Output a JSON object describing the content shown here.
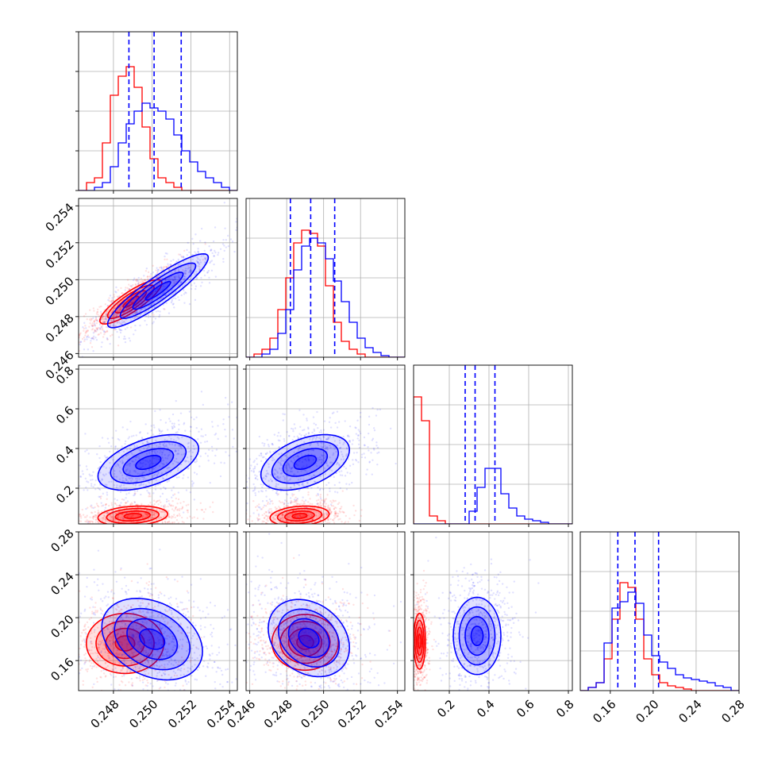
{
  "figure": {
    "type": "corner_plot"
  },
  "colors": {
    "series_a": "#ff0000",
    "series_b": "#0000ff",
    "grid": "#b0b0b0",
    "frame": "#000000"
  },
  "chart_data": {
    "type": "corner",
    "dimensions": 4,
    "series": [
      {
        "color": "#ff0000"
      },
      {
        "color": "#0000ff"
      }
    ],
    "axes": [
      {
        "range": [
          0.2462,
          0.2544
        ],
        "ticks": [
          "0.248",
          "0.250",
          "0.252",
          "0.254"
        ],
        "tick_values": [
          0.248,
          0.25,
          0.252,
          0.254
        ]
      },
      {
        "range": [
          0.2458,
          0.2544
        ],
        "ticks": [
          "0.246",
          "0.248",
          "0.250",
          "0.252",
          "0.254"
        ],
        "tick_values": [
          0.246,
          0.248,
          0.25,
          0.252,
          0.254
        ]
      },
      {
        "range": [
          0.02,
          0.82
        ],
        "ticks": [
          "0.2",
          "0.4",
          "0.6",
          "0.8"
        ],
        "tick_values": [
          0.2,
          0.4,
          0.6,
          0.8
        ]
      },
      {
        "range": [
          0.132,
          0.28
        ],
        "ticks": [
          "0.16",
          "0.20",
          "0.24",
          "0.28"
        ],
        "tick_values": [
          0.16,
          0.2,
          0.24,
          0.28
        ]
      }
    ],
    "quantiles_blue": [
      [
        0.2488,
        0.2501,
        0.2515
      ],
      [
        0.2482,
        0.2493,
        0.2506
      ],
      [
        0.28,
        0.33,
        0.43
      ],
      [
        0.167,
        0.183,
        0.205
      ]
    ],
    "histograms": {
      "0": {
        "red": [
          0.0,
          0.05,
          0.08,
          0.3,
          0.6,
          0.72,
          0.78,
          0.65,
          0.4,
          0.2,
          0.08,
          0.05,
          0.02,
          0.0,
          0.0,
          0.0,
          0.0,
          0.0,
          0.0,
          0.0
        ],
        "blue": [
          0.0,
          0.0,
          0.02,
          0.05,
          0.15,
          0.3,
          0.42,
          0.5,
          0.55,
          0.52,
          0.5,
          0.45,
          0.35,
          0.25,
          0.18,
          0.12,
          0.08,
          0.05,
          0.02,
          0.0
        ]
      },
      "1": {
        "red": [
          0.0,
          0.02,
          0.05,
          0.12,
          0.3,
          0.5,
          0.72,
          0.8,
          0.78,
          0.7,
          0.45,
          0.22,
          0.1,
          0.05,
          0.02,
          0.0,
          0.0,
          0.0,
          0.0,
          0.0
        ],
        "blue": [
          0.0,
          0.0,
          0.02,
          0.05,
          0.15,
          0.3,
          0.55,
          0.7,
          0.75,
          0.72,
          0.62,
          0.48,
          0.35,
          0.22,
          0.12,
          0.06,
          0.03,
          0.01,
          0.0,
          0.0
        ]
      },
      "2": {
        "red": [
          0.8,
          0.65,
          0.05,
          0.02,
          0.0,
          0.0,
          0.0,
          0.0,
          0.0,
          0.0,
          0.0,
          0.0,
          0.0,
          0.0,
          0.0,
          0.0,
          0.0,
          0.0,
          0.0,
          0.0
        ],
        "blue": [
          0.0,
          0.0,
          0.0,
          0.0,
          0.0,
          0.0,
          0.0,
          0.08,
          0.23,
          0.35,
          0.35,
          0.19,
          0.1,
          0.05,
          0.03,
          0.02,
          0.01,
          0.0,
          0.0,
          0.0
        ]
      },
      "3": {
        "red": [
          0.0,
          0.02,
          0.05,
          0.2,
          0.45,
          0.68,
          0.65,
          0.45,
          0.2,
          0.1,
          0.05,
          0.03,
          0.02,
          0.01,
          0.0,
          0.0,
          0.0,
          0.0,
          0.0,
          0.0
        ],
        "blue": [
          0.0,
          0.02,
          0.05,
          0.3,
          0.52,
          0.56,
          0.62,
          0.55,
          0.35,
          0.22,
          0.18,
          0.14,
          0.1,
          0.08,
          0.07,
          0.06,
          0.05,
          0.03,
          0.02,
          0.0
        ]
      }
    },
    "joint": {
      "1-0": {
        "red": {
          "center": [
            0.2489,
            0.2488
          ],
          "spread": [
            0.0008,
            0.0006
          ],
          "corr": 0.85
        },
        "blue": {
          "center": [
            0.2503,
            0.2494
          ],
          "spread": [
            0.0013,
            0.001
          ],
          "corr": 0.9
        }
      },
      "2-0": {
        "red": {
          "center": [
            0.249,
            0.06
          ],
          "spread": [
            0.0009,
            0.025
          ],
          "corr": 0.2
        },
        "blue": {
          "center": [
            0.2498,
            0.33
          ],
          "spread": [
            0.0013,
            0.07
          ],
          "corr": 0.5
        }
      },
      "2-1": {
        "red": {
          "center": [
            0.2487,
            0.06
          ],
          "spread": [
            0.0008,
            0.025
          ],
          "corr": 0.2
        },
        "blue": {
          "center": [
            0.249,
            0.33
          ],
          "spread": [
            0.0012,
            0.07
          ],
          "corr": 0.45
        }
      },
      "3-0": {
        "red": {
          "center": [
            0.2486,
            0.176
          ],
          "spread": [
            0.001,
            0.014
          ],
          "corr": 0.0
        },
        "blue": {
          "center": [
            0.25,
            0.18
          ],
          "spread": [
            0.0013,
            0.019
          ],
          "corr": -0.3
        }
      },
      "3-1": {
        "red": {
          "center": [
            0.249,
            0.177
          ],
          "spread": [
            0.0009,
            0.013
          ],
          "corr": 0.0
        },
        "blue": {
          "center": [
            0.2492,
            0.181
          ],
          "spread": [
            0.0011,
            0.018
          ],
          "corr": -0.25
        }
      },
      "3-2": {
        "red": {
          "center": [
            0.05,
            0.178
          ],
          "spread": [
            0.015,
            0.013
          ],
          "corr": 0.0
        },
        "blue": {
          "center": [
            0.34,
            0.183
          ],
          "spread": [
            0.06,
            0.018
          ],
          "corr": 0.0
        }
      }
    }
  }
}
